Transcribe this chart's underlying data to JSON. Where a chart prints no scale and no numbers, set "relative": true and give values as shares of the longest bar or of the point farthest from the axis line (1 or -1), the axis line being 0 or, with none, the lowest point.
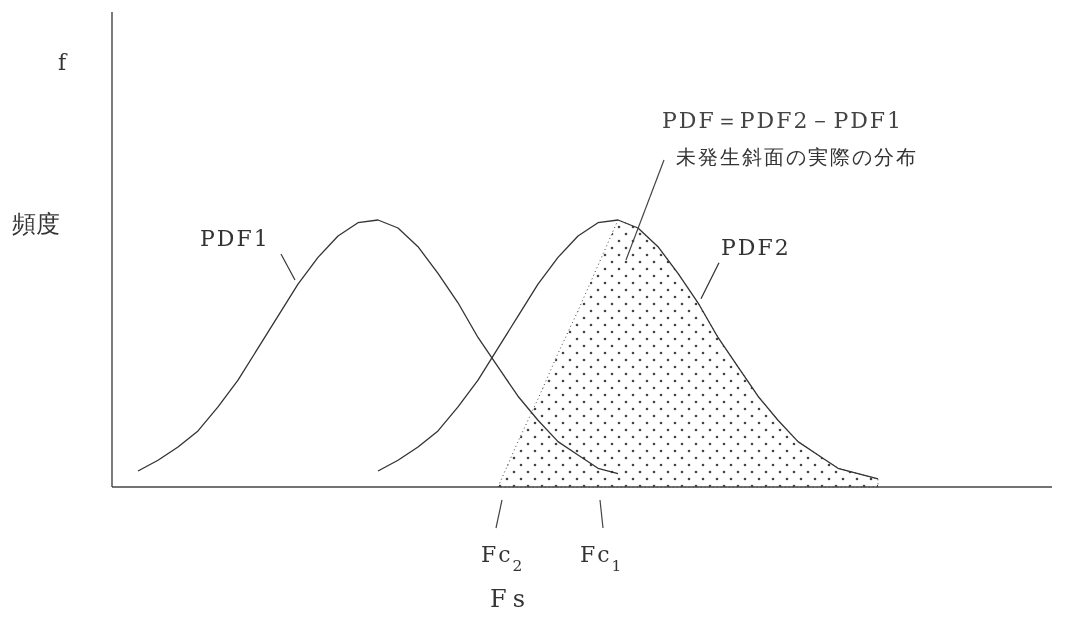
{
  "chart_data": {
    "type": "line",
    "relative": true,
    "ylabel": "頻度",
    "xlabel": "Fs",
    "categories": [
      null,
      null,
      null,
      null,
      null,
      null,
      null,
      null,
      null,
      null,
      null,
      null,
      null,
      null,
      null,
      null,
      null,
      null,
      null,
      null,
      null,
      null,
      null,
      null,
      null,
      null,
      null,
      null,
      null,
      null,
      null,
      null,
      null,
      null,
      null,
      null,
      null,
      null,
      null,
      null,
      null,
      null,
      null,
      null,
      null,
      null,
      null
    ],
    "series": [
      {
        "name": "PDF＝PDF2－PDF1",
        "type": "area",
        "color": "#444444",
        "values": [
          null,
          null,
          null,
          null,
          null,
          null,
          null,
          null,
          null,
          null,
          null,
          null,
          null,
          null,
          null,
          null,
          null,
          null,
          null,
          0,
          0.17,
          0.33,
          0.5,
          0.66,
          0.83,
          1.0,
          0.97,
          0.9,
          0.8,
          0.69,
          0.56,
          0.45,
          0.34,
          0.25,
          0.17,
          0.12,
          0.07,
          0.05,
          0.03,
          null,
          null,
          null,
          null,
          null,
          null,
          null,
          null
        ]
      },
      {
        "name": "PDF1",
        "color": "#333333",
        "values": [
          null,
          0.06,
          0.1,
          0.15,
          0.21,
          0.3,
          0.4,
          0.52,
          0.64,
          0.76,
          0.86,
          0.94,
          0.99,
          1.0,
          0.97,
          0.9,
          0.8,
          0.69,
          0.56,
          0.45,
          0.34,
          0.25,
          0.17,
          0.12,
          0.07,
          0.05,
          null,
          null,
          null,
          null,
          null,
          null,
          null,
          null,
          null,
          null,
          null,
          null,
          null,
          null,
          null,
          null,
          null,
          null,
          null,
          null,
          null
        ]
      },
      {
        "name": "PDF2",
        "color": "#333333",
        "values": [
          null,
          null,
          null,
          null,
          null,
          null,
          null,
          null,
          null,
          null,
          null,
          null,
          null,
          0.06,
          0.1,
          0.15,
          0.21,
          0.3,
          0.4,
          0.52,
          0.64,
          0.76,
          0.86,
          0.94,
          0.99,
          1.0,
          0.97,
          0.9,
          0.8,
          0.69,
          0.56,
          0.45,
          0.34,
          0.25,
          0.17,
          0.12,
          0.07,
          0.05,
          0.03,
          null,
          null,
          null,
          null,
          null,
          null,
          null,
          null
        ]
      }
    ],
    "annotations": [
      "f",
      "未発生斜面の実際の分布",
      "Fc$_{2}$",
      "Fc$_{1}$"
    ]
  }
}
